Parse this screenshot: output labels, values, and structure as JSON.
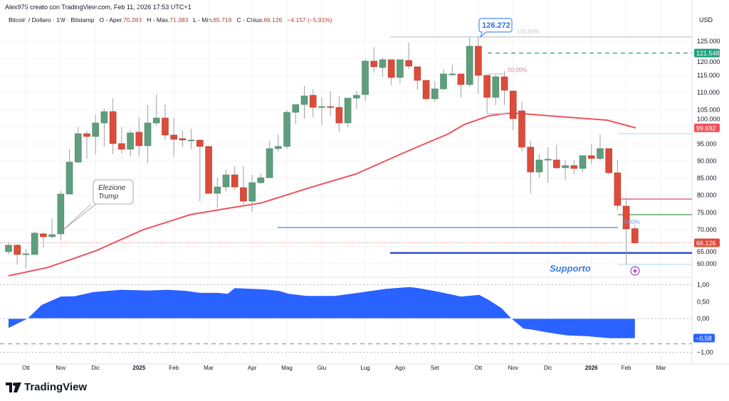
{
  "header": {
    "credit": "Alex975 creato con TradingView.com, Feb 11, 2026 17:53 UTC+1",
    "symbol": "Bitcoin / Dollaro · 1W · Bitstamp",
    "open_label": "O - Aper.",
    "open": "70.283",
    "high_label": "H - Max.",
    "high": "71.383",
    "low_label": "L - Min.",
    "low": "65.719",
    "close_label": "C - Chius.",
    "close": "66.126",
    "change": "−4.157 (−5,91%)"
  },
  "colors": {
    "up": "#5f9e7d",
    "down": "#dc4c3a",
    "ma": "#f0525d",
    "osc": "#2962ff",
    "teal": "#22a07e",
    "navy": "#1e40c8"
  },
  "price_axis": {
    "currency": "USD",
    "ticks": [
      125000,
      120000,
      115000,
      110000,
      105000,
      100000,
      95000,
      90000,
      85000,
      80000,
      75000,
      70000,
      65000,
      60000
    ],
    "tick_labels": [
      "125.000",
      "120.000",
      "115.000",
      "110.000",
      "105.000",
      "100.000",
      "95.000",
      "90.000",
      "85.000",
      "80.000",
      "75.000",
      "70.000",
      "65.000",
      "60.000"
    ],
    "tags": [
      {
        "value": 121548,
        "label": "121.548",
        "color": "#22a07e"
      },
      {
        "value": 99692,
        "label": "99.692",
        "color": "#f0525d"
      },
      {
        "value": 66126,
        "label": "66.126",
        "color": "#dc4c3a"
      }
    ]
  },
  "osc_axis": {
    "ticks": [
      1,
      0.5,
      0,
      -1
    ],
    "tick_labels": [
      "1,00",
      "0,50",
      "0,00",
      "−1,00"
    ],
    "tag": {
      "value": -0.58,
      "label": "−0,58"
    }
  },
  "months": [
    {
      "w": 2,
      "label": "Ott"
    },
    {
      "w": 6,
      "label": "Nov"
    },
    {
      "w": 10,
      "label": "Dic"
    },
    {
      "w": 15,
      "label": "2025",
      "bold": true
    },
    {
      "w": 19,
      "label": "Feb"
    },
    {
      "w": 23,
      "label": "Mar"
    },
    {
      "w": 28,
      "label": "Apr"
    },
    {
      "w": 32,
      "label": "Mag"
    },
    {
      "w": 36,
      "label": "Giu"
    },
    {
      "w": 41,
      "label": "Lug"
    },
    {
      "w": 45,
      "label": "Ago"
    },
    {
      "w": 49,
      "label": "Set"
    },
    {
      "w": 54,
      "label": "Ott"
    },
    {
      "w": 58,
      "label": "Nov"
    },
    {
      "w": 62,
      "label": "Dic"
    },
    {
      "w": 67,
      "label": "2026",
      "bold": true
    },
    {
      "w": 71,
      "label": "Feb"
    },
    {
      "w": 75,
      "label": "Mar"
    }
  ],
  "candles_ohlc": [
    [
      63550,
      66250,
      62720,
      65420
    ],
    [
      65420,
      65830,
      59810,
      62720
    ],
    [
      62720,
      64380,
      58780,
      62930
    ],
    [
      62720,
      69360,
      62720,
      68950
    ],
    [
      68740,
      69160,
      64800,
      67910
    ],
    [
      67910,
      73310,
      67500,
      68530
    ],
    [
      68740,
      81400,
      66870,
      80370
    ],
    [
      80370,
      93450,
      80370,
      89710
    ],
    [
      89710,
      99880,
      89290,
      98010
    ],
    [
      98010,
      98840,
      90750,
      97180
    ],
    [
      97180,
      103620,
      91990,
      101130
    ],
    [
      101130,
      105280,
      94280,
      104450
    ],
    [
      104450,
      108390,
      91990,
      95110
    ],
    [
      95110,
      99880,
      92200,
      93450
    ],
    [
      93450,
      99050,
      91370,
      98220
    ],
    [
      98430,
      102790,
      91370,
      94480
    ],
    [
      94480,
      106320,
      89290,
      101130
    ],
    [
      101130,
      109430,
      100300,
      102580
    ],
    [
      102580,
      106520,
      96140,
      97600
    ],
    [
      97600,
      102580,
      91370,
      96350
    ],
    [
      96560,
      98840,
      94070,
      96140
    ],
    [
      96140,
      99470,
      93450,
      96140
    ],
    [
      96140,
      96140,
      78290,
      94280
    ],
    [
      94280,
      94480,
      80570,
      80570
    ],
    [
      80570,
      85140,
      76420,
      82440
    ],
    [
      82440,
      87430,
      81200,
      85970
    ],
    [
      85970,
      88460,
      81610,
      82440
    ],
    [
      82240,
      88460,
      77460,
      78290
    ],
    [
      78290,
      85970,
      75180,
      83690
    ],
    [
      83690,
      86390,
      83270,
      85140
    ],
    [
      85140,
      95940,
      85140,
      93650
    ],
    [
      93650,
      97810,
      92820,
      94280
    ],
    [
      94280,
      104860,
      93450,
      104240
    ],
    [
      104240,
      106520,
      100920,
      106520
    ],
    [
      106520,
      111920,
      102370,
      109020
    ],
    [
      109220,
      110880,
      102790,
      105690
    ],
    [
      105900,
      108600,
      100500,
      105900
    ],
    [
      105900,
      110470,
      103000,
      105690
    ],
    [
      105690,
      109020,
      98430,
      101130
    ],
    [
      101130,
      108390,
      99880,
      108390
    ],
    [
      108390,
      110470,
      105280,
      109220
    ],
    [
      109430,
      119810,
      107560,
      119190
    ],
    [
      119190,
      123340,
      115870,
      117530
    ],
    [
      117320,
      120230,
      114620,
      119600
    ],
    [
      119600,
      119600,
      112130,
      114410
    ],
    [
      114410,
      119600,
      112750,
      119600
    ],
    [
      119400,
      124590,
      116900,
      117730
    ],
    [
      117530,
      117530,
      110880,
      113580
    ],
    [
      113580,
      113580,
      107770,
      108190
    ],
    [
      108190,
      113380,
      107350,
      111090
    ],
    [
      111090,
      116900,
      110680,
      115450
    ],
    [
      115450,
      118150,
      114830,
      115450
    ],
    [
      115450,
      115450,
      108600,
      112340
    ],
    [
      112340,
      126040,
      111710,
      123550
    ],
    [
      123550,
      126272,
      109640,
      115040
    ],
    [
      115040,
      115040,
      103830,
      108600
    ],
    [
      108600,
      115240,
      106320,
      114620
    ],
    [
      114620,
      116280,
      106320,
      110680
    ],
    [
      110470,
      110470,
      99050,
      102370
    ],
    [
      104660,
      107350,
      92820,
      94070
    ],
    [
      94070,
      95940,
      80570,
      86800
    ],
    [
      86800,
      91990,
      85140,
      90330
    ],
    [
      90540,
      94070,
      83690,
      90540
    ],
    [
      90330,
      94690,
      87630,
      88050
    ],
    [
      88050,
      90330,
      84520,
      88670
    ],
    [
      88670,
      90330,
      86180,
      87840
    ],
    [
      87840,
      91580,
      86800,
      91580
    ],
    [
      91580,
      94900,
      89090,
      90750
    ],
    [
      90750,
      97810,
      90120,
      93650
    ],
    [
      93650,
      93650,
      85970,
      86590
    ],
    [
      86590,
      90330,
      75590,
      77050
    ],
    [
      76840,
      79330,
      59810,
      70190
    ],
    [
      70283,
      71383,
      65719,
      66126
    ]
  ],
  "moving_average": [
    [
      0,
      56500
    ],
    [
      4.5,
      58930
    ],
    [
      10,
      63760
    ],
    [
      15.4,
      69900
    ],
    [
      20.9,
      74350
    ],
    [
      25.2,
      76210
    ],
    [
      29.1,
      77800
    ],
    [
      34.5,
      82150
    ],
    [
      40,
      86300
    ],
    [
      45.4,
      92410
    ],
    [
      50.6,
      98000
    ],
    [
      52.4,
      100700
    ],
    [
      55.2,
      103200
    ],
    [
      57.1,
      103900
    ],
    [
      58.8,
      103900
    ],
    [
      63.4,
      103000
    ],
    [
      68.8,
      101960
    ],
    [
      72.1,
      99692
    ]
  ],
  "oscillator": [
    [
      0,
      -0.28
    ],
    [
      2.2,
      0
    ],
    [
      3.8,
      0.4
    ],
    [
      6,
      0.65
    ],
    [
      7.6,
      0.66
    ],
    [
      9.7,
      0.78
    ],
    [
      12.9,
      0.85
    ],
    [
      16.1,
      0.83
    ],
    [
      18.3,
      0.85
    ],
    [
      20.4,
      0.82
    ],
    [
      22,
      0.76
    ],
    [
      24.1,
      0.76
    ],
    [
      25.2,
      0.73
    ],
    [
      26,
      0.9
    ],
    [
      29.5,
      0.86
    ],
    [
      31.1,
      0.82
    ],
    [
      32.2,
      0.73
    ],
    [
      34.3,
      0.67
    ],
    [
      37.5,
      0.67
    ],
    [
      40.7,
      0.78
    ],
    [
      43.4,
      0.88
    ],
    [
      46.1,
      0.93
    ],
    [
      47.1,
      0.9
    ],
    [
      49.3,
      0.8
    ],
    [
      52,
      0.65
    ],
    [
      54.1,
      0.7
    ],
    [
      55.2,
      0.55
    ],
    [
      56.7,
      0.3
    ],
    [
      57.8,
      0
    ],
    [
      59.2,
      -0.3
    ],
    [
      60,
      -0.32
    ],
    [
      62.1,
      -0.42
    ],
    [
      64.2,
      -0.5
    ],
    [
      66.4,
      -0.52
    ],
    [
      69.1,
      -0.58
    ],
    [
      72,
      -0.58
    ]
  ],
  "annotations": {
    "ath_callout": "126.272",
    "fib_100": "100,00%",
    "fib_50": "50,00%",
    "fib_0": "0,00%",
    "election_note_line1": "Elezione",
    "election_note_line2": "Trump",
    "support_label": "Supporto"
  },
  "levels": {
    "ath": 126272,
    "target": 121548,
    "red": 78900,
    "green": 74350,
    "blue": 70600,
    "support": 63170,
    "cyan_top": 98000,
    "cyan_bottom": 59800,
    "last": 66126
  },
  "brand": "TradingView"
}
